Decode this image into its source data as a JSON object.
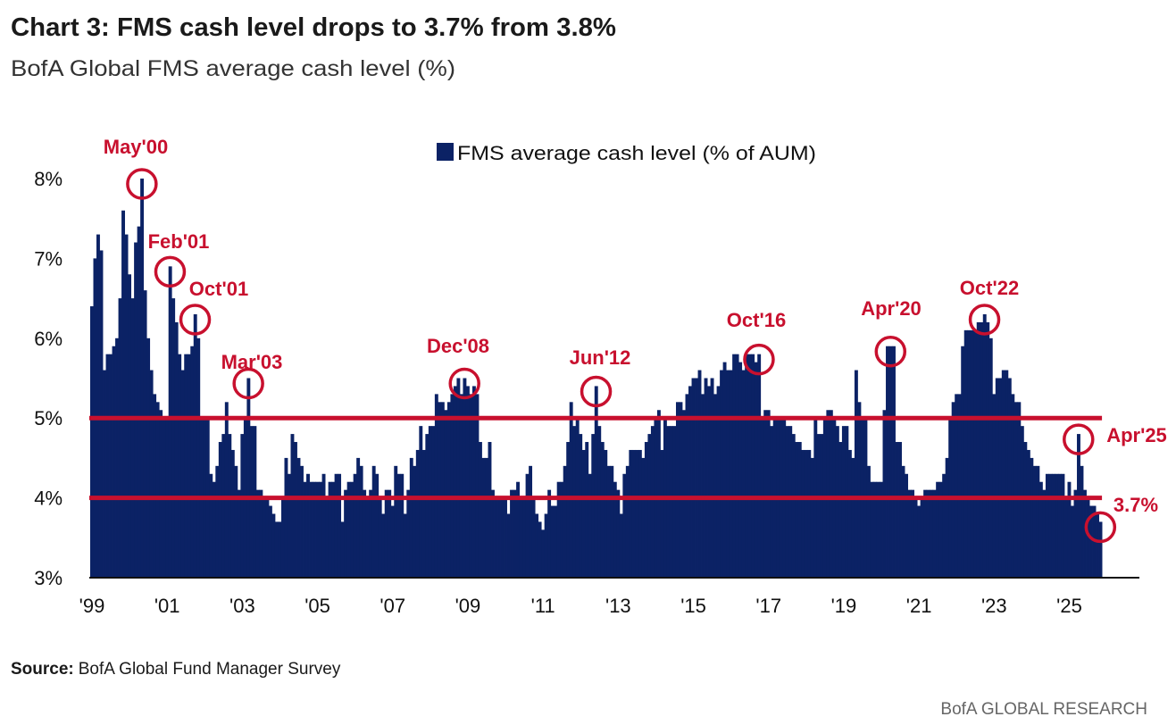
{
  "chart_data": {
    "type": "bar",
    "title": "Chart 3: FMS cash level drops to 3.7% from 3.8%",
    "subtitle": "BofA Global FMS average cash level (%)",
    "legend": {
      "label": "FMS average cash level (% of AUM)",
      "placement": "top-center"
    },
    "series": [
      {
        "name": "FMS average cash level (% of AUM)",
        "color": "#0b2265",
        "start": "1999-01",
        "frequency": "monthly",
        "values": [
          6.4,
          7.0,
          7.3,
          7.1,
          5.6,
          5.8,
          5.8,
          5.9,
          6.0,
          6.5,
          7.6,
          7.3,
          6.8,
          6.5,
          7.2,
          7.4,
          8.0,
          6.6,
          6.0,
          5.6,
          5.3,
          5.2,
          5.1,
          5.0,
          5.0,
          6.9,
          6.5,
          6.2,
          5.8,
          5.6,
          5.8,
          5.8,
          5.9,
          6.3,
          6.0,
          5.0,
          5.0,
          5.0,
          4.3,
          4.2,
          4.4,
          4.7,
          4.8,
          5.2,
          4.8,
          4.6,
          4.4,
          4.1,
          4.8,
          5.0,
          5.5,
          4.9,
          4.9,
          4.1,
          4.1,
          4.0,
          4.0,
          3.9,
          3.8,
          3.7,
          3.7,
          4.0,
          4.5,
          4.3,
          4.8,
          4.7,
          4.5,
          4.4,
          4.2,
          4.3,
          4.2,
          4.2,
          4.2,
          4.2,
          4.3,
          4.0,
          4.2,
          4.2,
          4.3,
          4.3,
          3.7,
          4.1,
          4.2,
          4.2,
          4.3,
          4.5,
          4.4,
          4.1,
          4.0,
          4.1,
          4.4,
          4.3,
          4.0,
          3.8,
          4.1,
          4.1,
          3.9,
          4.4,
          4.3,
          4.3,
          3.8,
          4.1,
          4.5,
          4.4,
          4.6,
          4.9,
          4.6,
          4.8,
          4.9,
          4.9,
          5.3,
          5.2,
          5.2,
          5.1,
          5.2,
          5.3,
          5.4,
          5.5,
          5.3,
          5.5,
          5.4,
          5.3,
          5.4,
          5.3,
          4.7,
          4.5,
          4.5,
          4.7,
          4.1,
          4.0,
          4.0,
          4.0,
          4.0,
          3.8,
          4.1,
          4.1,
          4.2,
          4.0,
          4.0,
          4.3,
          4.4,
          4.0,
          3.8,
          3.7,
          3.6,
          3.8,
          4.1,
          3.9,
          3.9,
          4.2,
          4.2,
          4.4,
          4.7,
          5.2,
          4.9,
          5.0,
          4.8,
          4.6,
          4.7,
          4.3,
          4.8,
          5.4,
          4.9,
          4.7,
          4.6,
          4.4,
          4.4,
          4.2,
          4.1,
          3.8,
          4.3,
          4.4,
          4.6,
          4.6,
          4.6,
          4.6,
          4.5,
          4.7,
          4.8,
          4.9,
          5.0,
          5.1,
          4.6,
          5.0,
          4.9,
          4.9,
          4.9,
          5.2,
          5.2,
          5.1,
          5.3,
          5.4,
          5.5,
          5.5,
          5.6,
          5.3,
          5.5,
          5.4,
          5.5,
          5.3,
          5.4,
          5.6,
          5.7,
          5.6,
          5.6,
          5.8,
          5.8,
          5.7,
          5.6,
          5.8,
          5.8,
          5.8,
          5.7,
          5.8,
          5.0,
          5.1,
          5.1,
          4.9,
          5.0,
          5.0,
          5.0,
          5.0,
          4.9,
          4.9,
          4.8,
          4.7,
          4.7,
          4.6,
          4.6,
          4.6,
          4.5,
          5.0,
          4.8,
          4.8,
          5.0,
          5.1,
          5.1,
          5.0,
          4.9,
          4.7,
          4.9,
          4.9,
          4.6,
          4.5,
          5.6,
          5.2,
          5.0,
          5.0,
          4.4,
          4.2,
          4.2,
          4.2,
          4.2,
          5.1,
          5.9,
          5.9,
          5.9,
          4.7,
          4.7,
          4.4,
          4.3,
          4.1,
          4.1,
          4.0,
          3.9,
          4.0,
          4.1,
          4.1,
          4.1,
          4.1,
          4.2,
          4.2,
          4.3,
          4.5,
          5.0,
          5.2,
          5.3,
          5.3,
          5.9,
          6.1,
          6.1,
          6.1,
          6.1,
          6.2,
          6.2,
          6.3,
          6.2,
          6.0,
          5.3,
          5.5,
          5.5,
          5.6,
          5.6,
          5.5,
          5.3,
          5.2,
          5.2,
          4.9,
          4.7,
          4.6,
          4.5,
          4.4,
          4.4,
          4.2,
          4.1,
          4.3,
          4.3,
          4.3,
          4.3,
          4.3,
          4.3,
          4.0,
          4.2,
          3.9,
          4.1,
          4.8,
          4.4,
          4.1,
          4.0,
          3.9,
          3.9,
          3.8,
          3.7
        ]
      }
    ],
    "ylim": [
      3,
      8
    ],
    "y_ticks": [
      "3%",
      "4%",
      "5%",
      "6%",
      "7%",
      "8%"
    ],
    "x_ticks": [
      "'99",
      "'01",
      "'03",
      "'05",
      "'07",
      "'09",
      "'11",
      "'13",
      "'15",
      "'17",
      "'19",
      "'21",
      "'23",
      "'25"
    ],
    "reference_lines": [
      {
        "value": 5,
        "color": "#c8102e"
      },
      {
        "value": 4,
        "color": "#c8102e"
      }
    ],
    "annotations": [
      {
        "label": "May'00",
        "month": "2000-05"
      },
      {
        "label": "Feb'01",
        "month": "2001-02"
      },
      {
        "label": "Oct'01",
        "month": "2001-10"
      },
      {
        "label": "Mar'03",
        "month": "2003-03"
      },
      {
        "label": "Dec'08",
        "month": "2008-12"
      },
      {
        "label": "Jun'12",
        "month": "2012-06"
      },
      {
        "label": "Oct'16",
        "month": "2016-10"
      },
      {
        "label": "Apr'20",
        "month": "2020-04"
      },
      {
        "label": "Oct'22",
        "month": "2022-10"
      },
      {
        "label": "Apr'25",
        "month": "2025-04"
      },
      {
        "label": "3.7%",
        "month": "2025-11"
      }
    ],
    "annotation_color": "#c8102e",
    "grid": false
  },
  "source": {
    "label": "Source:",
    "text": "BofA Global Fund Manager Survey"
  },
  "footer": "BofA GLOBAL RESEARCH"
}
